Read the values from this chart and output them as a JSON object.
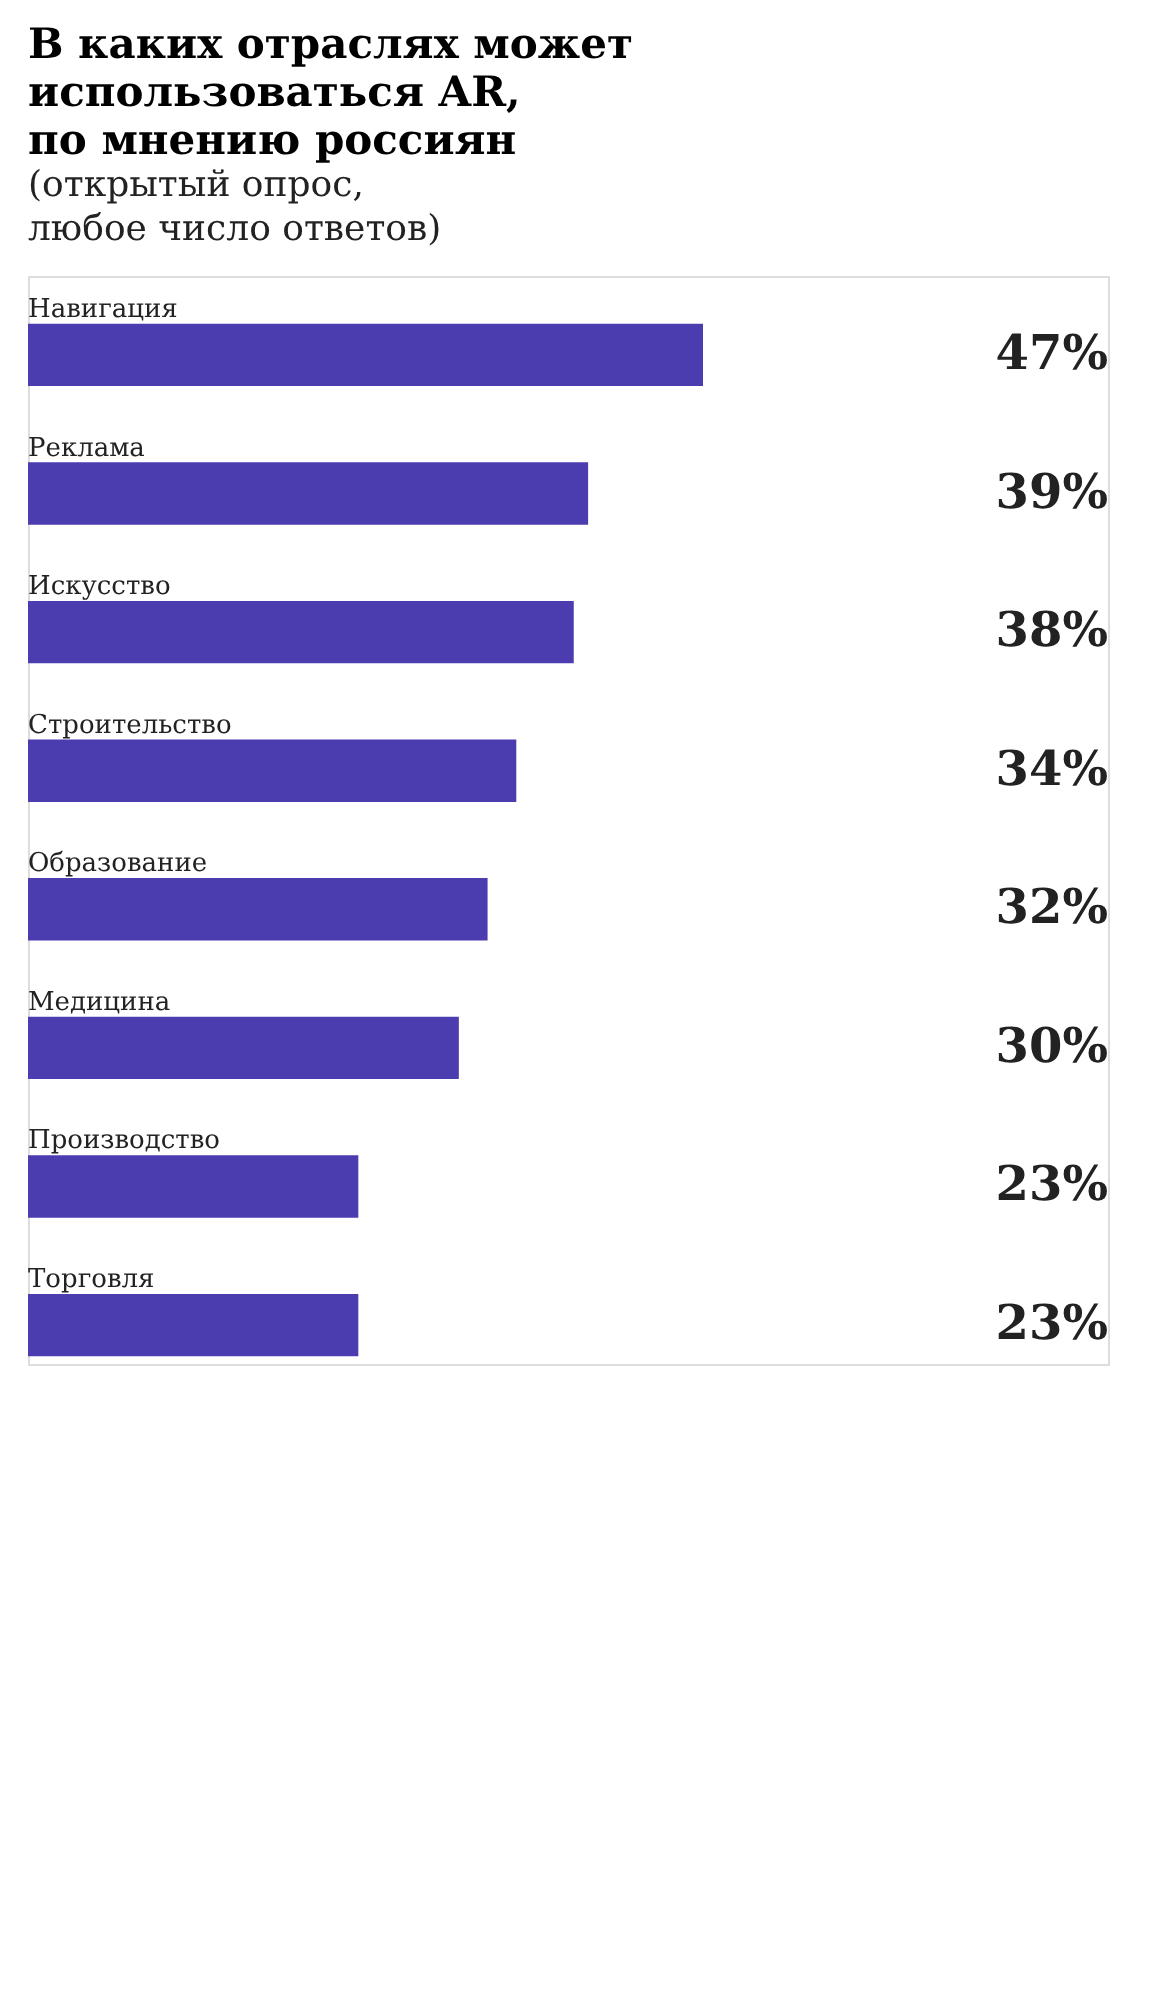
{
  "chart_data": {
    "type": "bar",
    "orientation": "horizontal",
    "title": "В каких отраслях может\nиспользоваться AR,\nпо мнению россиян",
    "subtitle": "(открытый опрос,\nлюбое число ответов)",
    "categories": [
      "Навигация",
      "Реклама",
      "Искусство",
      "Строительство",
      "Образование",
      "Медицина",
      "Производство",
      "Торговля"
    ],
    "values": [
      47,
      39,
      38,
      34,
      32,
      30,
      23,
      23
    ],
    "value_labels": [
      "47%",
      "39%",
      "38%",
      "34%",
      "32%",
      "30%",
      "23%",
      "23%"
    ],
    "color": "#4b3cb0"
  }
}
